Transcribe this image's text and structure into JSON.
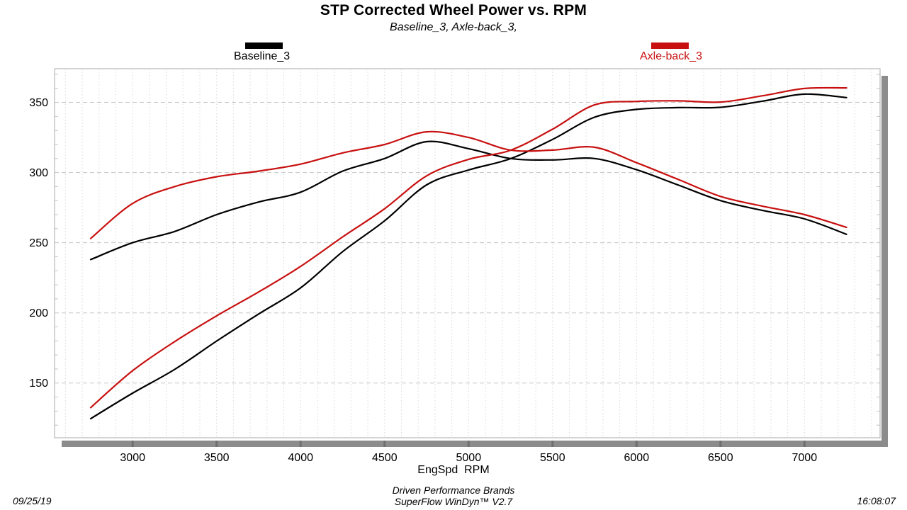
{
  "chart": {
    "title": "STP Corrected Wheel Power vs. RPM",
    "subtitle": "Baseline_3, Axle-back_3,",
    "x_axis_label": "EngSpd  RPM",
    "legend": [
      {
        "label": "Baseline_3",
        "color": "#000000"
      },
      {
        "label": "Axle-back_3",
        "color": "#C81010"
      }
    ]
  },
  "footer": {
    "date": "09/25/19",
    "center_line1": "Driven Performance Brands",
    "center_line2": "SuperFlow WinDyn™ V2.7",
    "time": "16:08:07"
  },
  "colors": {
    "baseline": "#000000",
    "axleback": "#C81010",
    "grid_vertical": "#D8D8D8",
    "grid_horizontal": "#C6C6C6",
    "frame": "#A8A8A8",
    "shadow_bar": "#8C8C8C",
    "shadow_bar_tick": "#6F6F6F",
    "background": "#FFFFFF"
  },
  "chart_data": {
    "type": "line",
    "title": "STP Corrected Wheel Power vs. RPM",
    "subtitle": "Baseline_3, Axle-back_3,",
    "xlabel": "EngSpd  RPM",
    "ylabel": "",
    "xlim": [
      2535,
      7450
    ],
    "ylim": [
      111,
      374
    ],
    "x_major_ticks": [
      3000,
      3500,
      4000,
      4500,
      5000,
      5500,
      6000,
      6500,
      7000
    ],
    "y_major_ticks": [
      150,
      200,
      250,
      300,
      350
    ],
    "x_minor_step": 100,
    "y_minor_step": 10,
    "grid": "dashed",
    "legend_position": "top",
    "x": [
      2750,
      3000,
      3250,
      3500,
      3750,
      4000,
      4250,
      4500,
      4750,
      5000,
      5250,
      5500,
      5750,
      6000,
      6250,
      6500,
      6750,
      7000,
      7250
    ],
    "series": [
      {
        "name": "Baseline_3 torque",
        "run": "Baseline_3",
        "color": "#000000",
        "values": [
          238,
          250,
          258,
          270,
          279,
          286,
          301,
          310,
          322,
          317,
          310,
          309,
          310,
          302,
          291,
          280,
          273,
          267,
          256
        ]
      },
      {
        "name": "Baseline_3 power",
        "run": "Baseline_3",
        "color": "#000000",
        "values": [
          124.6,
          142.8,
          159.7,
          179.9,
          199.2,
          217.8,
          243.6,
          265.6,
          291.2,
          301.8,
          309.9,
          323.6,
          339.4,
          345.0,
          346.3,
          346.5,
          350.9,
          355.9,
          353.4
        ]
      },
      {
        "name": "Axle-back_3 torque",
        "run": "Axle-back_3",
        "color": "#C81010",
        "values": [
          253,
          278,
          290,
          297,
          301,
          306,
          314,
          320,
          329,
          325,
          316,
          316,
          318,
          307,
          295,
          283,
          276,
          270,
          261
        ]
      },
      {
        "name": "Axle-back_3 power",
        "run": "Axle-back_3",
        "color": "#C81010",
        "values": [
          132.5,
          158.8,
          179.5,
          197.9,
          214.9,
          233.1,
          254.1,
          274.2,
          297.6,
          309.4,
          315.9,
          330.9,
          348.2,
          350.7,
          351.1,
          350.2,
          354.7,
          359.9,
          360.3
        ]
      }
    ]
  }
}
